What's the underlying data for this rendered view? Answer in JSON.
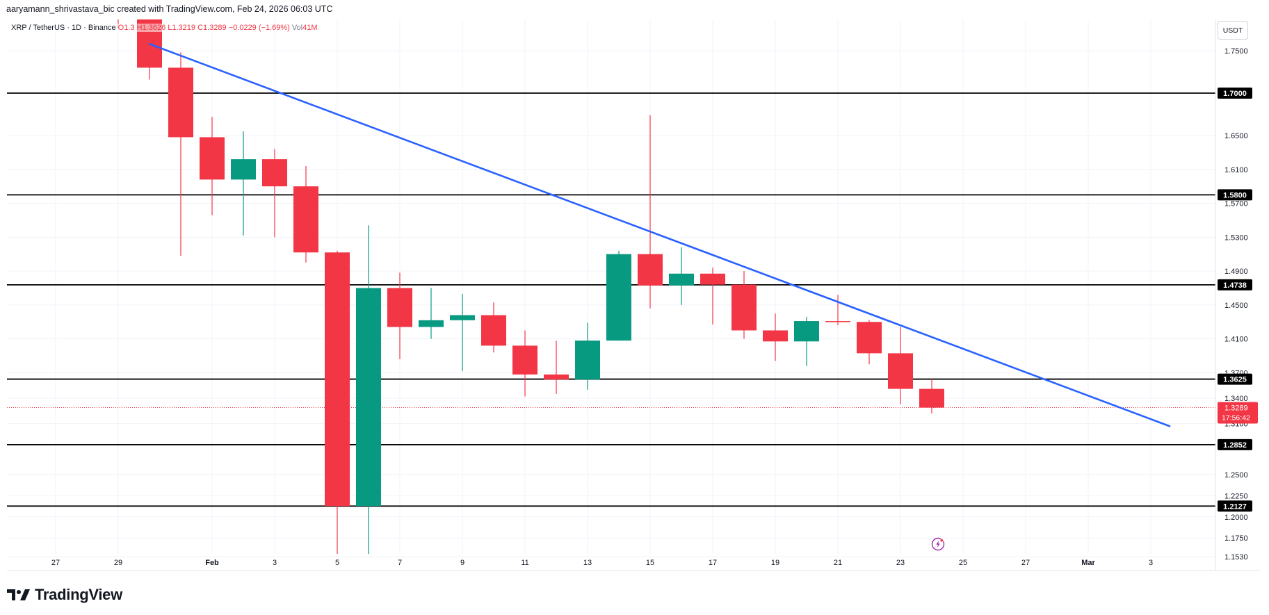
{
  "topbar": {
    "author_line": "aaryamann_shrivastava_bic created with TradingView.com, Feb 24, 2026 06:03 UTC"
  },
  "legend": {
    "symbol": "XRP / TetherUS · 1D · Binance",
    "open": "O1.3",
    "high": "H1.3626",
    "low": "L1.3219",
    "close": "C1.3289",
    "change": "−0.0229 (−1.69%)",
    "volume_label": "Vol",
    "volume": "41M"
  },
  "axis": {
    "unit": "USDT"
  },
  "brand": {
    "name": "TradingView"
  },
  "colors": {
    "up": "#089981",
    "down": "#f23645",
    "trendline": "#2962ff",
    "level": "#000000",
    "grid": "#f0f3fa",
    "last_price": "#f23645"
  },
  "icons": {
    "replay": "lightning-replay-icon",
    "brand": "tradingview-logo-icon"
  },
  "chart_data": {
    "type": "candlestick",
    "x_axis_labels": [
      "27",
      "29",
      "Feb",
      "3",
      "5",
      "7",
      "9",
      "11",
      "13",
      "15",
      "17",
      "19",
      "21",
      "23",
      "25",
      "27",
      "Mar",
      "3"
    ],
    "x_axis_label_days": [
      -5,
      -3,
      0,
      2,
      4,
      6,
      8,
      10,
      12,
      14,
      16,
      18,
      20,
      22,
      24,
      26,
      28,
      30
    ],
    "y_axis_ticks": [
      "1.7500",
      "1.6500",
      "1.6100",
      "1.5700",
      "1.5300",
      "1.4900",
      "1.4500",
      "1.4100",
      "1.3700",
      "1.3400",
      "1.3100",
      "1.2850",
      "1.2500",
      "1.2250",
      "1.2000",
      "1.1750",
      "1.1530"
    ],
    "y_axis_tick_values": [
      1.75,
      1.65,
      1.61,
      1.57,
      1.53,
      1.49,
      1.45,
      1.41,
      1.37,
      1.34,
      1.31,
      1.285,
      1.25,
      1.225,
      1.2,
      1.175,
      1.153
    ],
    "candles": [
      {
        "day": -3,
        "o": 1.812,
        "h": 1.822,
        "l": 1.776,
        "c": 1.8
      },
      {
        "day": -2,
        "o": 1.8,
        "h": 1.808,
        "l": 1.716,
        "c": 1.73
      },
      {
        "day": -1,
        "o": 1.73,
        "h": 1.748,
        "l": 1.508,
        "c": 1.648
      },
      {
        "day": 0,
        "o": 1.648,
        "h": 1.672,
        "l": 1.556,
        "c": 1.598
      },
      {
        "day": 1,
        "o": 1.598,
        "h": 1.655,
        "l": 1.532,
        "c": 1.622
      },
      {
        "day": 2,
        "o": 1.622,
        "h": 1.634,
        "l": 1.53,
        "c": 1.59
      },
      {
        "day": 3,
        "o": 1.59,
        "h": 1.614,
        "l": 1.5,
        "c": 1.512
      },
      {
        "day": 4,
        "o": 1.512,
        "h": 1.514,
        "l": 1.12,
        "c": 1.2127
      },
      {
        "day": 5,
        "o": 1.2127,
        "h": 1.544,
        "l": 1.153,
        "c": 1.47
      },
      {
        "day": 6,
        "o": 1.47,
        "h": 1.488,
        "l": 1.386,
        "c": 1.424
      },
      {
        "day": 7,
        "o": 1.424,
        "h": 1.47,
        "l": 1.41,
        "c": 1.432
      },
      {
        "day": 8,
        "o": 1.432,
        "h": 1.463,
        "l": 1.372,
        "c": 1.438
      },
      {
        "day": 9,
        "o": 1.438,
        "h": 1.453,
        "l": 1.394,
        "c": 1.402
      },
      {
        "day": 10,
        "o": 1.402,
        "h": 1.42,
        "l": 1.342,
        "c": 1.368
      },
      {
        "day": 11,
        "o": 1.368,
        "h": 1.408,
        "l": 1.345,
        "c": 1.362
      },
      {
        "day": 12,
        "o": 1.362,
        "h": 1.429,
        "l": 1.35,
        "c": 1.408
      },
      {
        "day": 13,
        "o": 1.408,
        "h": 1.514,
        "l": 1.408,
        "c": 1.51
      },
      {
        "day": 14,
        "o": 1.51,
        "h": 1.674,
        "l": 1.446,
        "c": 1.473
      },
      {
        "day": 15,
        "o": 1.473,
        "h": 1.518,
        "l": 1.45,
        "c": 1.487
      },
      {
        "day": 16,
        "o": 1.487,
        "h": 1.494,
        "l": 1.427,
        "c": 1.474
      },
      {
        "day": 17,
        "o": 1.474,
        "h": 1.49,
        "l": 1.41,
        "c": 1.42
      },
      {
        "day": 18,
        "o": 1.42,
        "h": 1.44,
        "l": 1.384,
        "c": 1.407
      },
      {
        "day": 19,
        "o": 1.407,
        "h": 1.436,
        "l": 1.378,
        "c": 1.431
      },
      {
        "day": 20,
        "o": 1.431,
        "h": 1.462,
        "l": 1.426,
        "c": 1.43
      },
      {
        "day": 21,
        "o": 1.43,
        "h": 1.432,
        "l": 1.38,
        "c": 1.393
      },
      {
        "day": 22,
        "o": 1.393,
        "h": 1.424,
        "l": 1.333,
        "c": 1.351
      },
      {
        "day": 23,
        "o": 1.351,
        "h": 1.3626,
        "l": 1.3219,
        "c": 1.3289
      }
    ],
    "horizontal_levels": [
      "1.7000",
      "1.5800",
      "1.4738",
      "1.3625",
      "1.2852",
      "1.2127"
    ],
    "horizontal_level_values": [
      1.7,
      1.58,
      1.4738,
      1.3625,
      1.2852,
      1.2127
    ],
    "trendline": {
      "from": {
        "day": -2,
        "price": 1.758
      },
      "to": {
        "day": 30.6,
        "price": 1.307
      }
    },
    "top_dashed_level": 1.822,
    "last_price": {
      "label": "1.3289",
      "value": 1.3289,
      "countdown": "17:56:42"
    }
  }
}
